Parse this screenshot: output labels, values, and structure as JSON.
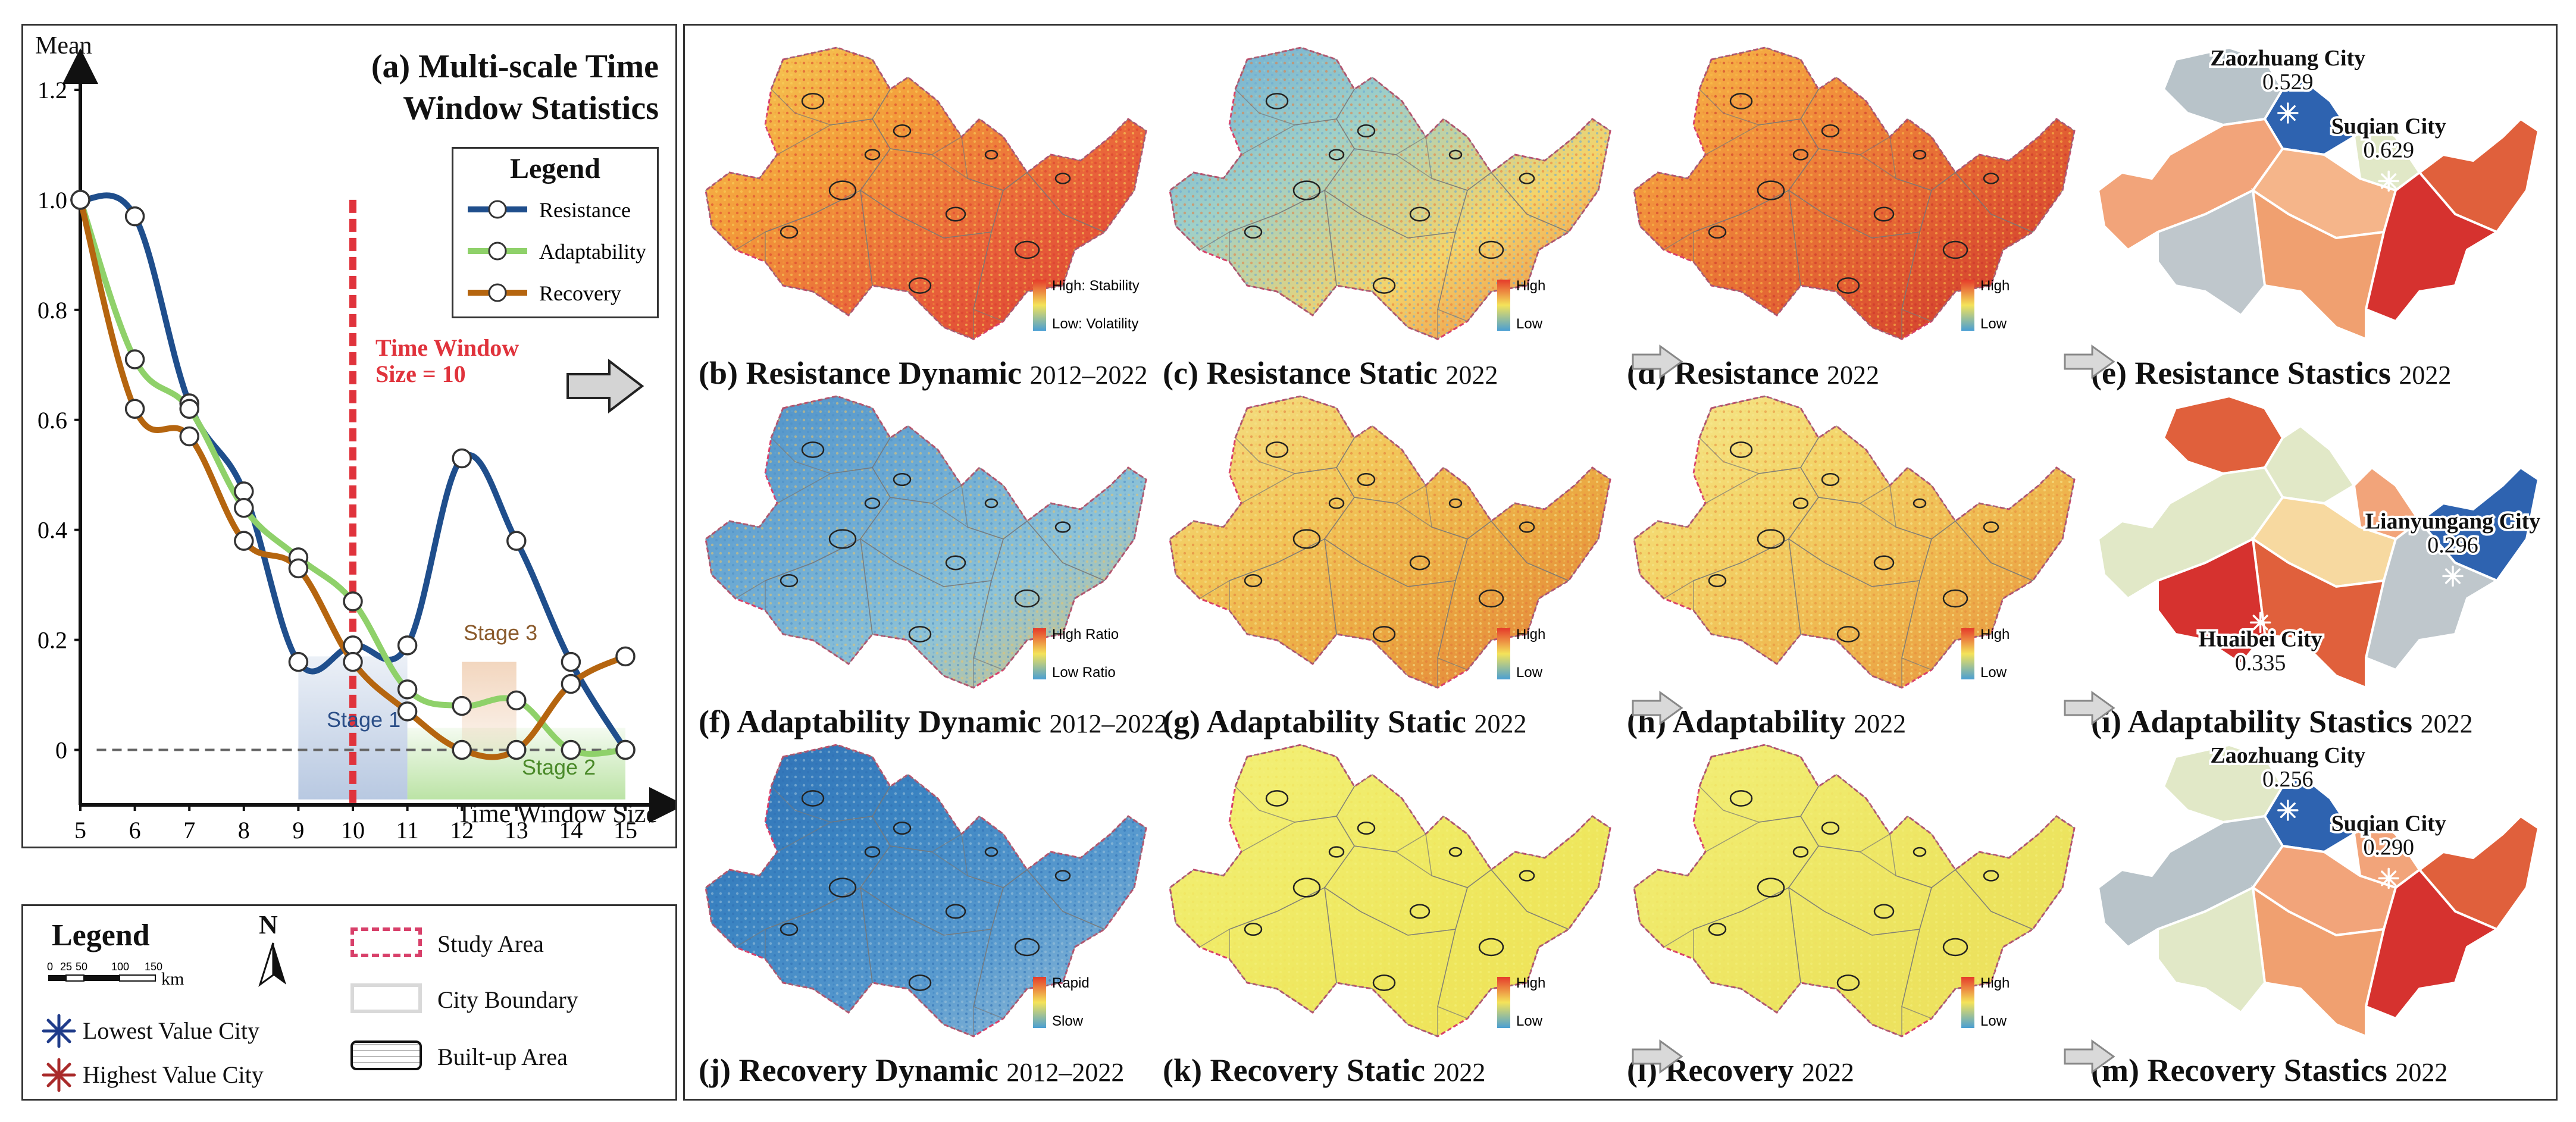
{
  "chart_panel": {
    "title_line1": "(a) Multi-scale Time",
    "title_line2": "Window Statistics",
    "y_axis_label": "Mean",
    "x_axis_label": "Time Window Size",
    "legend_title": "Legend",
    "time_window_label_line1": "Time Window",
    "time_window_label_line2": "Size = 10",
    "stage1": "Stage 1",
    "stage2": "Stage 2",
    "stage3": "Stage 3"
  },
  "chart_data": {
    "type": "line",
    "title": "(a) Multi-scale Time Window Statistics",
    "xlabel": "Time Window Size",
    "ylabel": "Mean",
    "x": [
      5,
      6,
      7,
      8,
      9,
      10,
      11,
      12,
      13,
      14,
      15
    ],
    "xlim": [
      5,
      15
    ],
    "ylim": [
      -0.1,
      1.2
    ],
    "y_ticks": [
      0,
      0.2,
      0.4,
      0.6,
      0.8,
      1.0,
      1.2
    ],
    "y_tick_labels": [
      "0",
      "0.2",
      "0.4",
      "0.6",
      "0.8",
      "1.0",
      "1.2"
    ],
    "x_ticks": [
      5,
      6,
      7,
      8,
      9,
      10,
      11,
      12,
      13,
      14,
      15
    ],
    "x_tick_labels": [
      "5",
      "6",
      "7",
      "8",
      "9",
      "10",
      "11",
      "12",
      "13",
      "14",
      "15"
    ],
    "series": [
      {
        "name": "Resistance",
        "color": "#1f4e8c",
        "values": [
          1.0,
          0.97,
          0.63,
          0.47,
          0.16,
          0.19,
          0.19,
          0.53,
          0.38,
          0.16,
          0.0
        ]
      },
      {
        "name": "Adaptability",
        "color": "#8fd16a",
        "values": [
          1.0,
          0.71,
          0.62,
          0.44,
          0.35,
          0.27,
          0.11,
          0.08,
          0.09,
          0.0,
          0.0
        ]
      },
      {
        "name": "Recovery",
        "color": "#b5650f",
        "values": [
          1.0,
          0.62,
          0.57,
          0.38,
          0.33,
          0.16,
          0.07,
          0.0,
          0.0,
          0.12,
          0.17
        ]
      }
    ],
    "reference_line": {
      "type": "vertical",
      "x": 10,
      "label": "Time Window Size = 10",
      "color": "#e0333c"
    },
    "baseline": 0,
    "stages": [
      {
        "label": "Stage 1",
        "x_range": [
          9,
          11
        ],
        "color": "#7e9cc9"
      },
      {
        "label": "Stage 2",
        "x_range": [
          11,
          15
        ],
        "color": "#8fd16a"
      },
      {
        "label": "Stage 3",
        "x_range": [
          12,
          13
        ],
        "color": "#e8b58a"
      }
    ]
  },
  "maps": {
    "b": {
      "label": "(b) Resistance Dynamic",
      "year": "2012–2022",
      "legend_high": "High: Stability",
      "legend_low": "Low: Volatility"
    },
    "c": {
      "label": "(c) Resistance Static",
      "year": "2022",
      "legend_high": "High",
      "legend_low": "Low"
    },
    "d": {
      "label": "(d) Resistance",
      "year": "2022",
      "legend_high": "High",
      "legend_low": "Low"
    },
    "e": {
      "label": "(e) Resistance Stastics",
      "year": "2022"
    },
    "f": {
      "label": "(f) Adaptability Dynamic",
      "year": "2012–2022",
      "legend_high": "High Ratio",
      "legend_low": "Low Ratio"
    },
    "g": {
      "label": "(g) Adaptability Static",
      "year": "2022",
      "legend_high": "High",
      "legend_low": "Low"
    },
    "h": {
      "label": "(h) Adaptability",
      "year": "2022",
      "legend_high": "High",
      "legend_low": "Low"
    },
    "i": {
      "label": "(i) Adaptability Stastics",
      "year": "2022"
    },
    "j": {
      "label": "(j) Recovery Dynamic",
      "year": "2012–2022",
      "legend_high": "Rapid",
      "legend_low": "Slow"
    },
    "k": {
      "label": "(k) Recovery Static",
      "year": "2022",
      "legend_high": "High",
      "legend_low": "Low"
    },
    "l": {
      "label": "(l) Recovery",
      "year": "2022",
      "legend_high": "High",
      "legend_low": "Low"
    },
    "m": {
      "label": "(m) Recovery Stastics",
      "year": "2022"
    }
  },
  "city_labels": {
    "e_low_name": "Zaozhuang City",
    "e_low_val": "0.529",
    "e_high_name": "Suqian City",
    "e_high_val": "0.629",
    "i_low_name": "Lianyungang City",
    "i_low_val": "0.296",
    "i_high_name": "Huaibei City",
    "i_high_val": "0.335",
    "m_low_name": "Zaozhuang City",
    "m_low_val": "0.256",
    "m_high_name": "Suqian City",
    "m_high_val": "0.290"
  },
  "map_legend": {
    "title": "Legend",
    "north": "N",
    "scale_ticks": [
      "0",
      "25",
      "50",
      "100",
      "150"
    ],
    "scale_unit": "km",
    "lowest": "Lowest Value City",
    "highest": "Highest Value City",
    "study_area": "Study Area",
    "city_boundary": "City Boundary",
    "built_up": "Built-up Area"
  }
}
